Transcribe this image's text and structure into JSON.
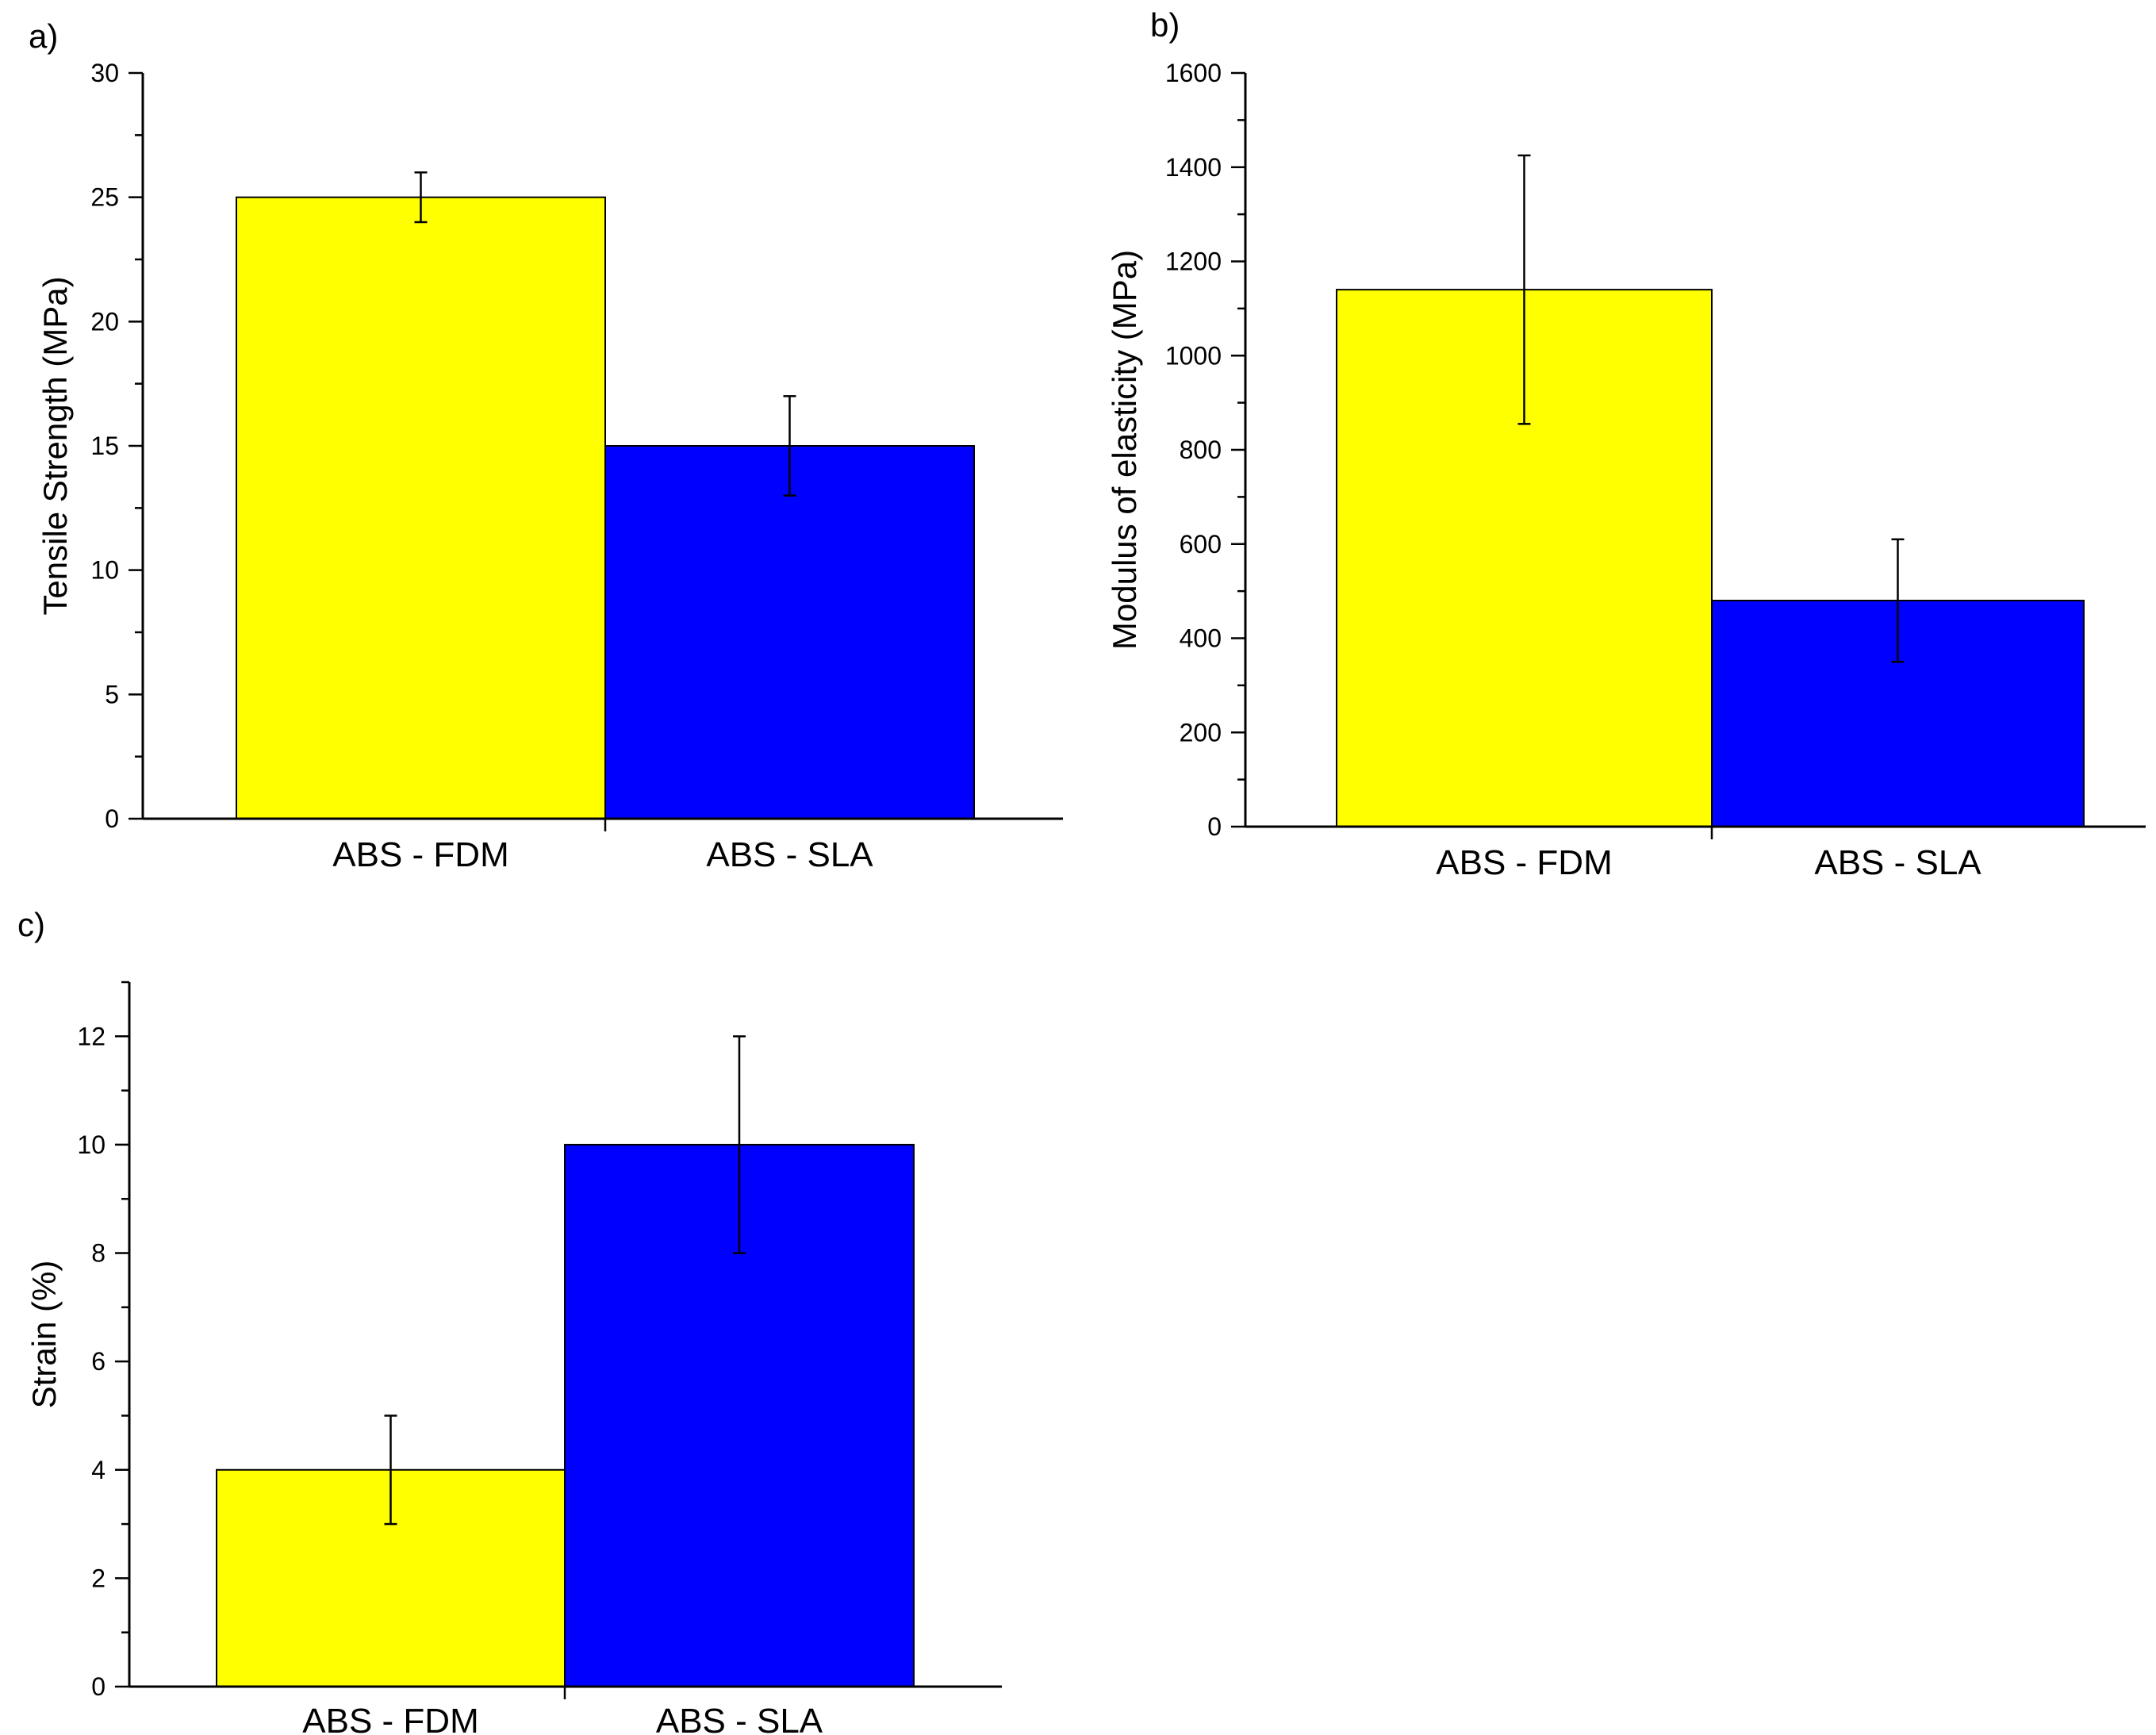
{
  "chart_data": [
    {
      "panel_label": "a)",
      "type": "bar",
      "categories": [
        "ABS - FDM",
        "ABS - SLA"
      ],
      "values": [
        25,
        15
      ],
      "errors": [
        1,
        2
      ],
      "colors": [
        "#ffff00",
        "#0000ff"
      ],
      "title": "",
      "xlabel": "",
      "ylabel": "Tensile Strength (MPa)",
      "ylim": [
        0,
        30
      ],
      "yticks": [
        0,
        5,
        10,
        15,
        20,
        25,
        30
      ],
      "minor_ticks": true,
      "grid": false
    },
    {
      "panel_label": "b)",
      "type": "bar",
      "categories": [
        "ABS - FDM",
        "ABS - SLA"
      ],
      "values": [
        1140,
        480
      ],
      "errors": [
        285,
        130
      ],
      "colors": [
        "#ffff00",
        "#0000ff"
      ],
      "title": "",
      "xlabel": "",
      "ylabel": "Modulus of elasticity (MPa)",
      "ylim": [
        0,
        1600
      ],
      "yticks": [
        0,
        200,
        400,
        600,
        800,
        1000,
        1200,
        1400,
        1600
      ],
      "minor_ticks": true,
      "grid": false
    },
    {
      "panel_label": "c)",
      "type": "bar",
      "categories": [
        "ABS - FDM",
        "ABS - SLA"
      ],
      "values": [
        4,
        10
      ],
      "errors": [
        1,
        2
      ],
      "colors": [
        "#ffff00",
        "#0000ff"
      ],
      "title": "",
      "xlabel": "",
      "ylabel": "Strain (%)",
      "ylim": [
        0,
        13
      ],
      "yticks": [
        0,
        2,
        4,
        6,
        8,
        10,
        12
      ],
      "minor_ticks": true,
      "grid": false
    }
  ]
}
